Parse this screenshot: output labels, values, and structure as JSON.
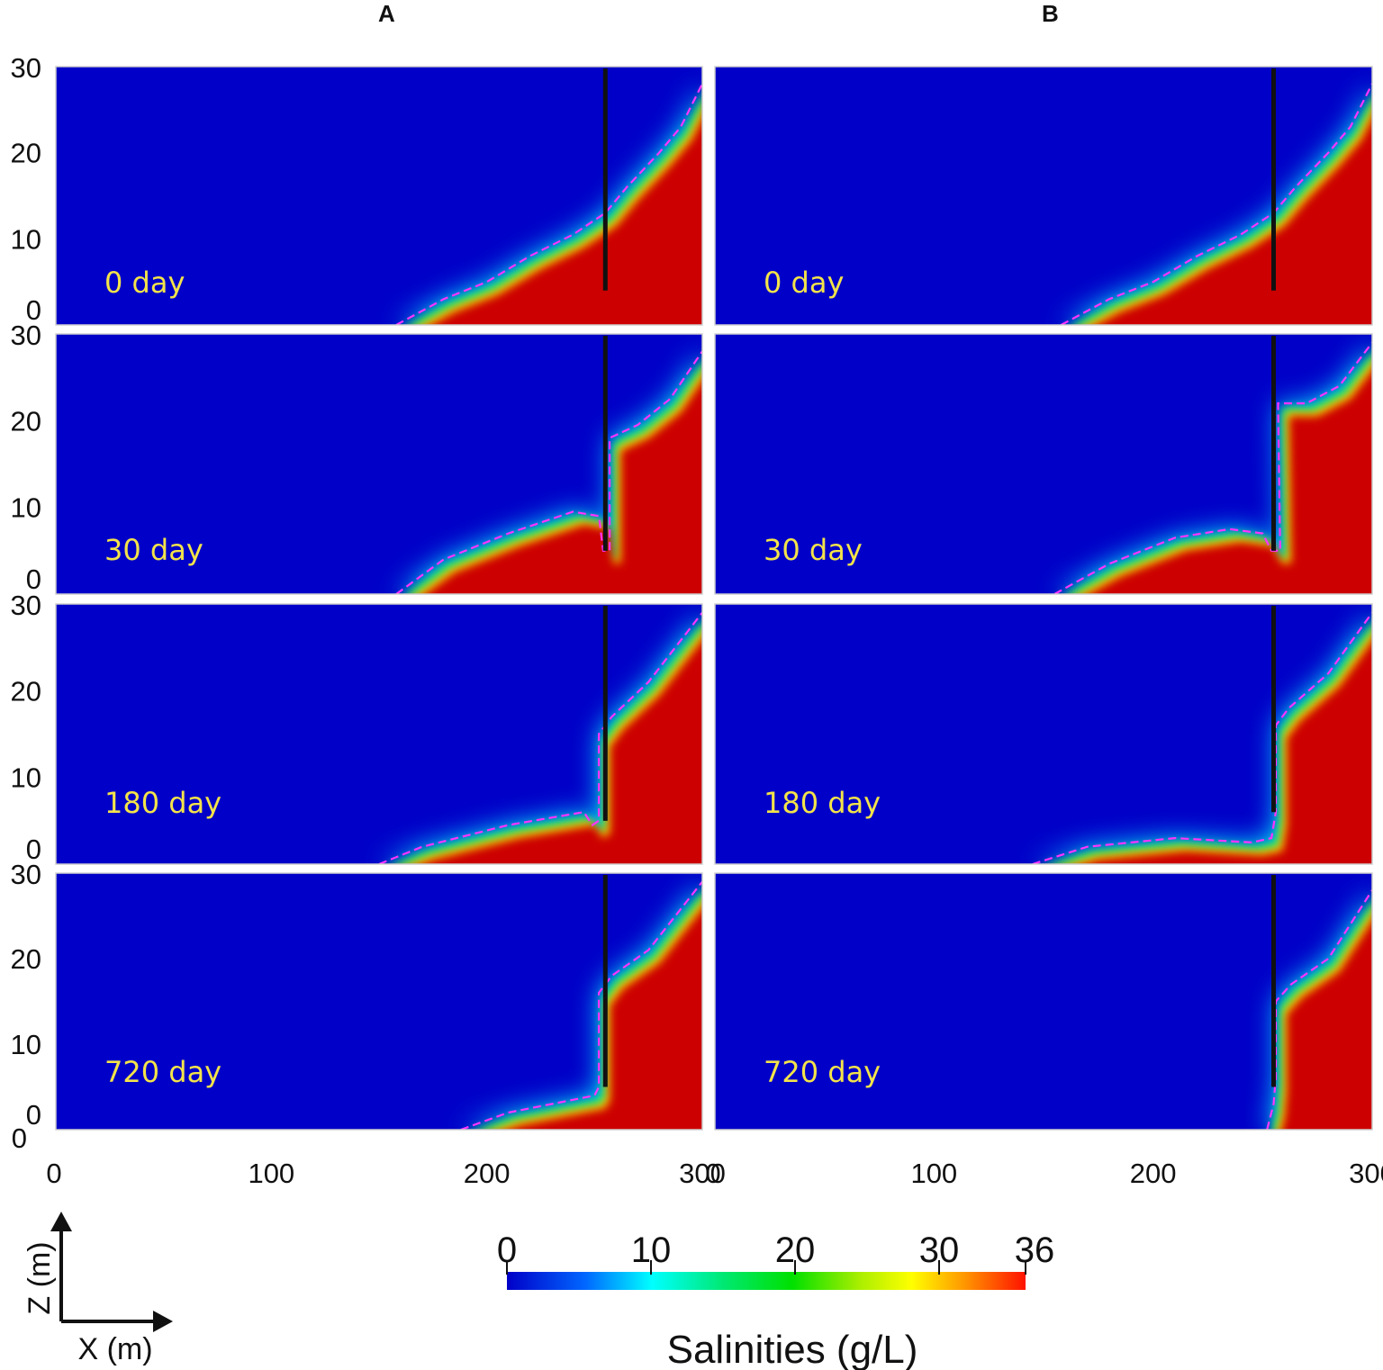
{
  "columns": [
    "A",
    "B"
  ],
  "panel_labels": [
    [
      "0 day",
      "30 day",
      "180 day",
      "720 day"
    ],
    [
      "0 day",
      "30 day",
      "180 day",
      "720 day"
    ]
  ],
  "axis_indicator": {
    "z": "Z (m)",
    "x": "X (m)"
  },
  "colorbar": {
    "title": "Salinities (g/L)",
    "ticks": [
      0,
      10,
      20,
      30,
      36
    ],
    "min": 0,
    "max": 36,
    "colors": [
      "#0000c8",
      "#0088ff",
      "#00ffff",
      "#00e870",
      "#00e000",
      "#88ee00",
      "#ffff00",
      "#ff9900",
      "#ff2200",
      "#d00000"
    ]
  },
  "chart_data": {
    "type": "heatmap",
    "title": "",
    "xlabel": "X (m)",
    "ylabel": "Z (m)",
    "xlim": [
      0,
      300
    ],
    "ylim": [
      0,
      30
    ],
    "xticks": [
      0,
      100,
      200,
      300
    ],
    "yticks": [
      0,
      10,
      20,
      30
    ],
    "value_label": "Salinities (g/L)",
    "value_range": [
      0,
      36
    ],
    "barrier_x": 255,
    "panels": [
      {
        "column": "A",
        "time": "0 day",
        "barrier_bottom_z": 4,
        "upper_interface": [
          [
            255,
            13
          ],
          [
            265,
            16
          ],
          [
            280,
            20
          ],
          [
            290,
            23
          ],
          [
            300,
            28
          ]
        ],
        "lower_interface": [
          [
            158,
            0
          ],
          [
            180,
            3
          ],
          [
            200,
            5
          ],
          [
            220,
            8
          ],
          [
            240,
            10.5
          ],
          [
            255,
            13
          ]
        ]
      },
      {
        "column": "A",
        "time": "30 day",
        "barrier_bottom_z": 5,
        "upper_interface": [
          [
            257,
            18
          ],
          [
            270,
            19.5
          ],
          [
            285,
            22.5
          ],
          [
            300,
            28
          ]
        ],
        "lower_interface": [
          [
            158,
            0
          ],
          [
            180,
            4
          ],
          [
            210,
            7
          ],
          [
            240,
            9.5
          ],
          [
            252,
            9
          ],
          [
            254,
            5
          ],
          [
            257,
            5
          ]
        ]
      },
      {
        "column": "A",
        "time": "180 day",
        "barrier_bottom_z": 5,
        "upper_interface": [
          [
            252,
            15
          ],
          [
            258,
            17
          ],
          [
            275,
            21
          ],
          [
            300,
            29
          ]
        ],
        "lower_interface": [
          [
            150,
            0
          ],
          [
            170,
            2
          ],
          [
            210,
            4.5
          ],
          [
            245,
            6
          ],
          [
            249,
            4.5
          ],
          [
            252,
            5
          ]
        ]
      },
      {
        "column": "A",
        "time": "720 day",
        "barrier_bottom_z": 5,
        "upper_interface": [
          [
            252,
            16
          ],
          [
            258,
            18
          ],
          [
            275,
            21
          ],
          [
            300,
            29
          ]
        ],
        "lower_interface": [
          [
            188,
            0
          ],
          [
            210,
            2
          ],
          [
            240,
            3.5
          ],
          [
            250,
            4
          ],
          [
            252,
            5
          ]
        ]
      },
      {
        "column": "B",
        "time": "0 day",
        "barrier_bottom_z": 4,
        "upper_interface": [
          [
            255,
            13
          ],
          [
            265,
            16
          ],
          [
            280,
            20
          ],
          [
            290,
            23
          ],
          [
            300,
            28
          ]
        ],
        "lower_interface": [
          [
            158,
            0
          ],
          [
            180,
            3
          ],
          [
            200,
            5
          ],
          [
            220,
            8
          ],
          [
            240,
            10.5
          ],
          [
            255,
            13
          ]
        ]
      },
      {
        "column": "B",
        "time": "30 day",
        "barrier_bottom_z": 5,
        "upper_interface": [
          [
            257,
            22
          ],
          [
            270,
            22
          ],
          [
            285,
            24
          ],
          [
            300,
            29
          ]
        ],
        "lower_interface": [
          [
            155,
            0
          ],
          [
            180,
            3.5
          ],
          [
            210,
            6.5
          ],
          [
            235,
            7.5
          ],
          [
            250,
            7
          ],
          [
            254,
            5
          ],
          [
            258,
            5
          ]
        ]
      },
      {
        "column": "B",
        "time": "180 day",
        "barrier_bottom_z": 6,
        "upper_interface": [
          [
            256,
            16
          ],
          [
            262,
            18
          ],
          [
            280,
            22
          ],
          [
            300,
            29
          ]
        ],
        "lower_interface": [
          [
            145,
            0
          ],
          [
            170,
            2
          ],
          [
            210,
            3
          ],
          [
            245,
            2.5
          ],
          [
            254,
            3
          ],
          [
            256,
            6
          ]
        ]
      },
      {
        "column": "B",
        "time": "720 day",
        "barrier_bottom_z": 5,
        "upper_interface": [
          [
            256,
            15
          ],
          [
            263,
            17
          ],
          [
            280,
            20
          ],
          [
            300,
            28
          ]
        ],
        "lower_interface": [
          [
            252,
            0
          ],
          [
            255,
            3
          ],
          [
            256,
            6
          ]
        ]
      }
    ]
  }
}
